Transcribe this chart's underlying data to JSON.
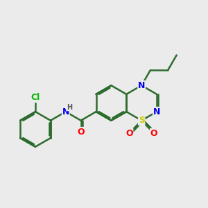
{
  "background_color": "#ebebeb",
  "bond_color": "#2d6b2d",
  "bond_width": 1.8,
  "atom_colors": {
    "N": "#0000ee",
    "S": "#cccc00",
    "O": "#ff0000",
    "Cl": "#00bb00",
    "H": "#555555"
  },
  "font_size": 8,
  "bl": 0.85
}
